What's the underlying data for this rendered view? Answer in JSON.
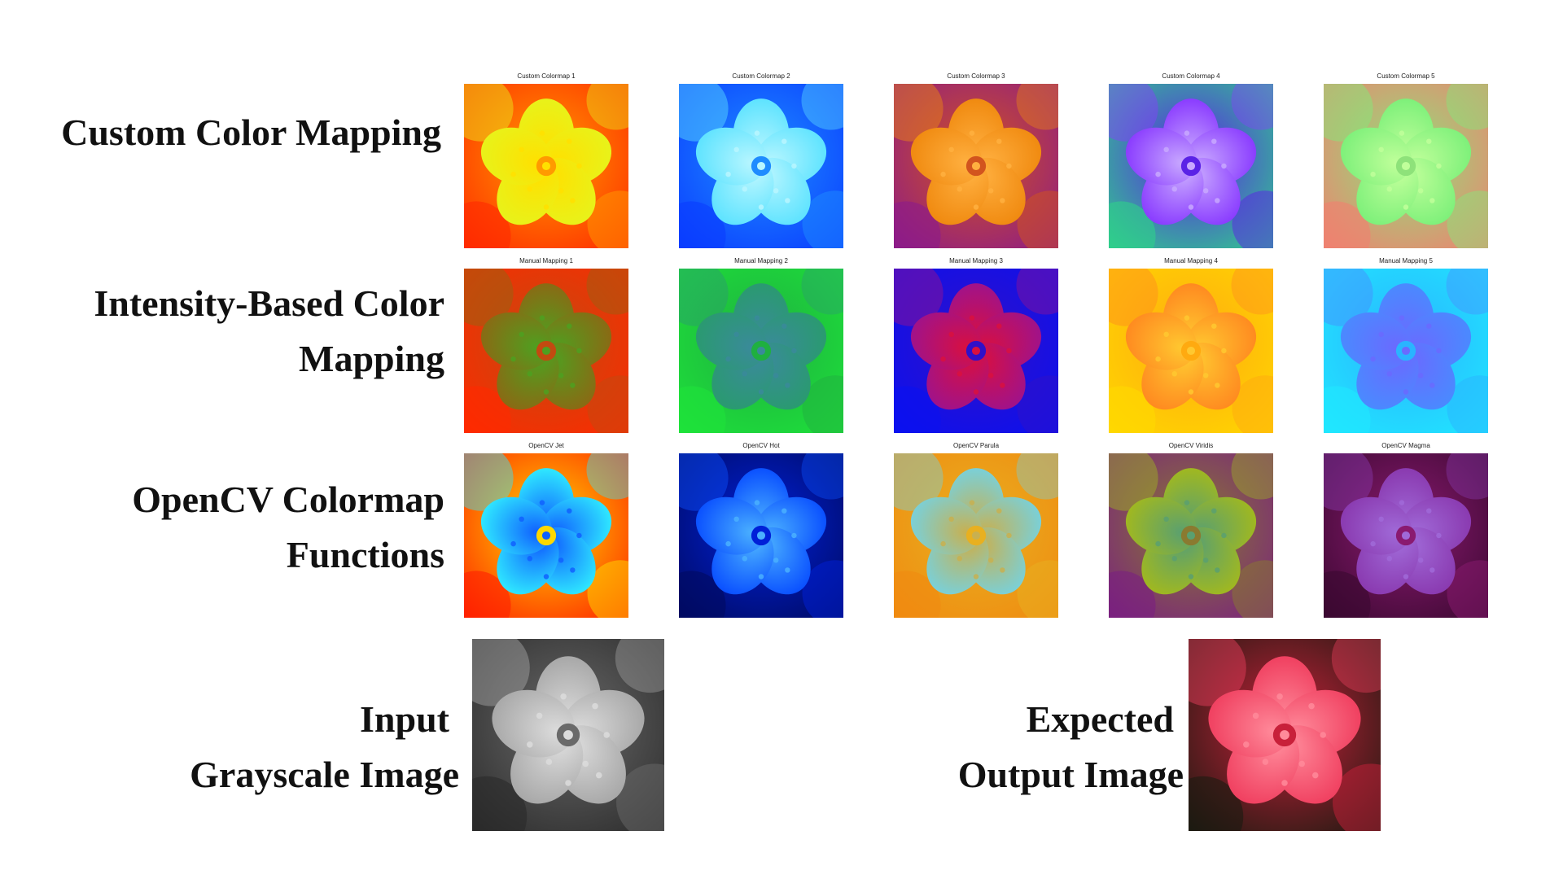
{
  "rows": [
    {
      "label_lines": [
        "Custom Color Mapping"
      ],
      "tiles": [
        {
          "title": "Custom Colormap 1",
          "colors": [
            "#ff2a00",
            "#ff9a00",
            "#e8f21a",
            "#ffe000"
          ]
        },
        {
          "title": "Custom Colormap 2",
          "colors": [
            "#0a3cff",
            "#1e8cff",
            "#5ee3ff",
            "#b8f6ff"
          ]
        },
        {
          "title": "Custom Colormap 3",
          "colors": [
            "#8c1a8a",
            "#d2541e",
            "#f08a10",
            "#ffb040"
          ]
        },
        {
          "title": "Custom Colormap 4",
          "colors": [
            "#2fd08a",
            "#5a22e6",
            "#8a3cff",
            "#c8a8ff"
          ]
        },
        {
          "title": "Custom Colormap 5",
          "colors": [
            "#f08070",
            "#8ee27a",
            "#7ef07a",
            "#c0ff9a"
          ]
        }
      ]
    },
    {
      "label_lines": [
        "Intensity-Based Color",
        "Mapping"
      ],
      "tiles": [
        {
          "title": "Manual Mapping 1",
          "colors": [
            "#ff2a00",
            "#c24a10",
            "#8a6a14",
            "#4ea020"
          ]
        },
        {
          "title": "Manual Mapping 2",
          "colors": [
            "#1ee23a",
            "#1fb040",
            "#2a9a70",
            "#3a8a9a"
          ]
        },
        {
          "title": "Manual Mapping 3",
          "colors": [
            "#0a10f0",
            "#3010c8",
            "#a0128a",
            "#d81040"
          ]
        },
        {
          "title": "Manual Mapping 4",
          "colors": [
            "#ffd800",
            "#ffaa10",
            "#ff8a20",
            "#ffc830"
          ]
        },
        {
          "title": "Manual Mapping 5",
          "colors": [
            "#20e8ff",
            "#2ab4ff",
            "#4a8aff",
            "#6a6aff"
          ]
        }
      ]
    },
    {
      "label_lines": [
        "OpenCV Colormap",
        "Functions"
      ],
      "tiles": [
        {
          "title": "OpenCV Jet",
          "colors": [
            "#ff2000",
            "#ffd800",
            "#2fe8ff",
            "#1060ff"
          ]
        },
        {
          "title": "OpenCV Hot",
          "colors": [
            "#000a60",
            "#0020d8",
            "#0a50ff",
            "#4ab0ff"
          ]
        },
        {
          "title": "OpenCV Parula",
          "colors": [
            "#f08a10",
            "#e8b020",
            "#7ad0d8",
            "#c8b050"
          ]
        },
        {
          "title": "OpenCV Viridis",
          "colors": [
            "#7a2080",
            "#8a7a30",
            "#a0b820",
            "#5aa070"
          ]
        },
        {
          "title": "OpenCV Magma",
          "colors": [
            "#3a0830",
            "#8a1a70",
            "#8a3ab0",
            "#a06ad8"
          ]
        }
      ]
    }
  ],
  "bottom": {
    "input": {
      "label_lines": [
        "Input",
        "Grayscale Image"
      ],
      "colors": [
        "#2a2a2a",
        "#6a6a6a",
        "#a8a8a8",
        "#dcdcdc"
      ]
    },
    "output": {
      "label_lines": [
        "Expected",
        "Output Image"
      ],
      "colors": [
        "#1a1a10",
        "#c8203a",
        "#f04060",
        "#ff8a9a"
      ]
    }
  }
}
